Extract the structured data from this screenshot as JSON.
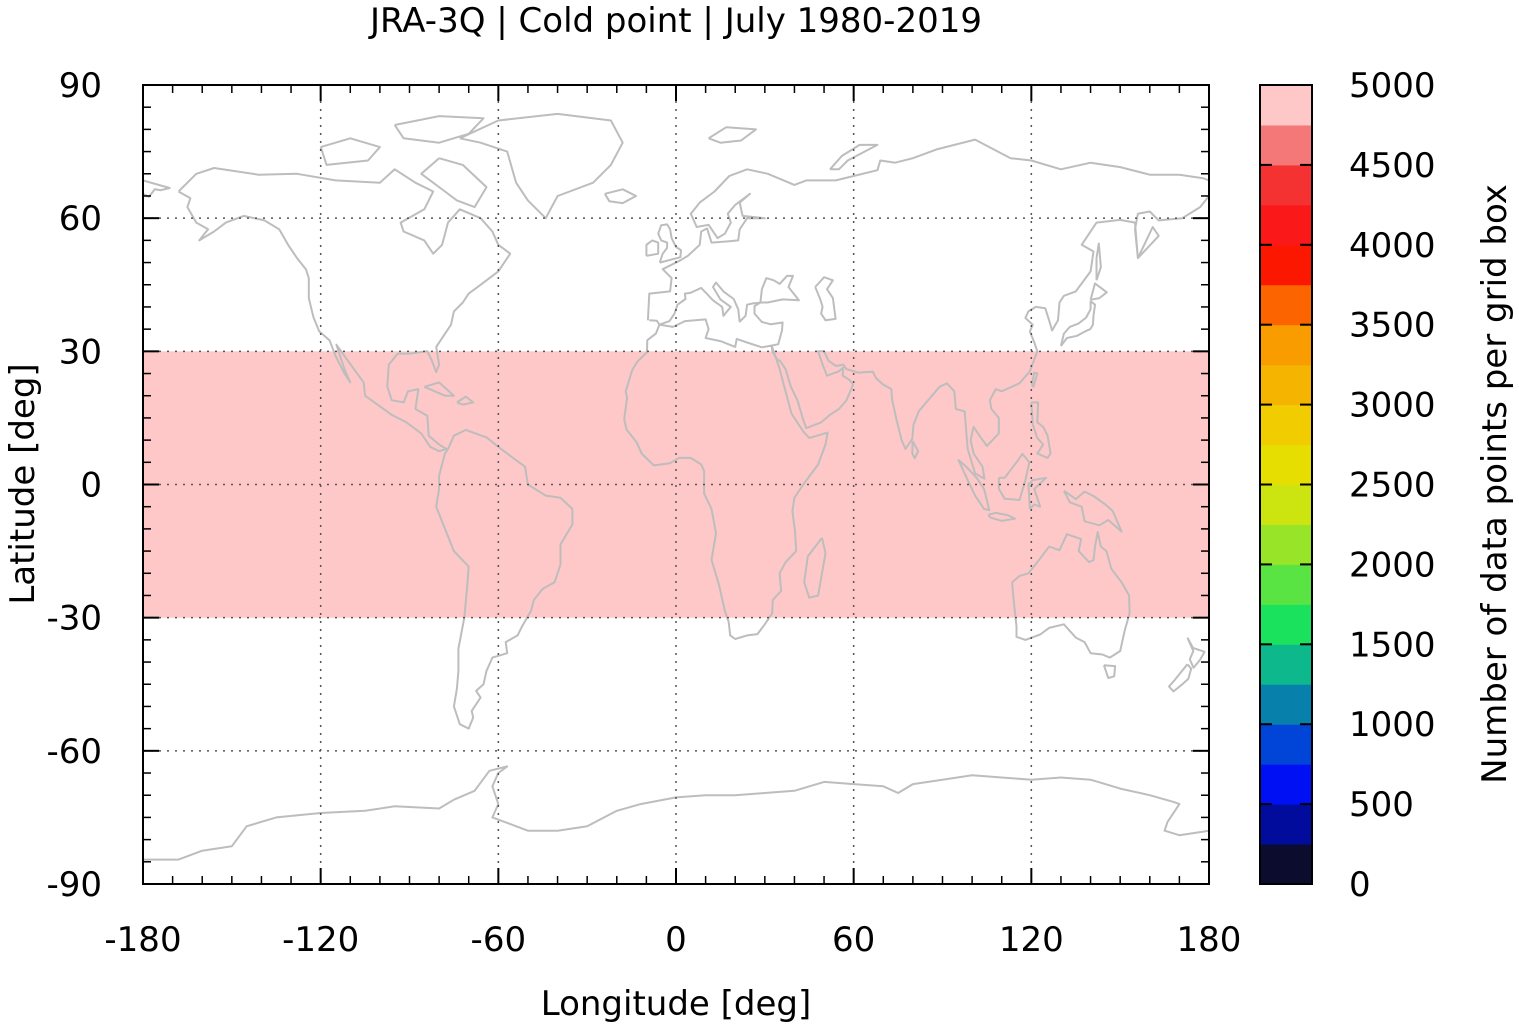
{
  "chart_data": {
    "type": "heatmap",
    "title": "JRA-3Q | Cold point | July 1980-2019",
    "xlabel": "Longitude [deg]",
    "ylabel": "Latitude [deg]",
    "xlim": [
      -180,
      180
    ],
    "ylim": [
      -90,
      90
    ],
    "x_ticks": [
      -180,
      -120,
      -60,
      0,
      60,
      120,
      180
    ],
    "y_ticks": [
      -90,
      -60,
      -30,
      0,
      30,
      60,
      90
    ],
    "grid": "dotted",
    "basemap": "world coastlines (gray outline)",
    "regions": [
      {
        "lon": [
          -180,
          180
        ],
        "lat": [
          -30,
          30
        ],
        "value": 5000
      }
    ],
    "colorbar": {
      "label": "Number of data points per grid box",
      "range": [
        0,
        5000
      ],
      "tick_labels": [
        "0",
        "500",
        "1000",
        "1500",
        "2000",
        "2500",
        "3000",
        "3500",
        "4000",
        "4500",
        "5000"
      ],
      "bins": [
        {
          "from": 0,
          "to": 250,
          "color": "#0c0c2e"
        },
        {
          "from": 250,
          "to": 500,
          "color": "#020c9c"
        },
        {
          "from": 500,
          "to": 750,
          "color": "#0010f4"
        },
        {
          "from": 750,
          "to": 1000,
          "color": "#0044d8"
        },
        {
          "from": 1000,
          "to": 1250,
          "color": "#0880ac"
        },
        {
          "from": 1250,
          "to": 1500,
          "color": "#0cb88c"
        },
        {
          "from": 1500,
          "to": 1750,
          "color": "#1ae25c"
        },
        {
          "from": 1750,
          "to": 2000,
          "color": "#5ae444"
        },
        {
          "from": 2000,
          "to": 2250,
          "color": "#98e428"
        },
        {
          "from": 2250,
          "to": 2500,
          "color": "#cce410"
        },
        {
          "from": 2500,
          "to": 2750,
          "color": "#e6de00"
        },
        {
          "from": 2750,
          "to": 3000,
          "color": "#f0cc00"
        },
        {
          "from": 3000,
          "to": 3250,
          "color": "#f4b400"
        },
        {
          "from": 3250,
          "to": 3500,
          "color": "#f89c00"
        },
        {
          "from": 3500,
          "to": 3750,
          "color": "#fc6400"
        },
        {
          "from": 3750,
          "to": 4000,
          "color": "#fc1800"
        },
        {
          "from": 4000,
          "to": 4250,
          "color": "#fa1818"
        },
        {
          "from": 4250,
          "to": 4500,
          "color": "#f43232"
        },
        {
          "from": 4500,
          "to": 4750,
          "color": "#f47878"
        },
        {
          "from": 4750,
          "to": 5000,
          "color": "#fec8c8"
        }
      ]
    },
    "colors": {
      "band_fill": "#ffcccc",
      "coastline": "#bdbdbd",
      "axis": "#000000",
      "grid": "#555555"
    }
  }
}
